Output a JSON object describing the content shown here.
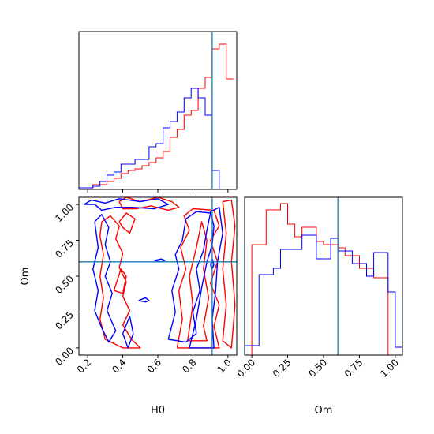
{
  "chart_data": {
    "type": "corner",
    "colors": {
      "run_a": "#ff0000",
      "run_b": "#0000ff",
      "truth": "#1f77b4"
    },
    "truth": {
      "H0": 0.91,
      "Om": 0.6
    },
    "params": [
      "H0",
      "Om"
    ],
    "axis_labels": {
      "H0": "H0",
      "Om": "Om"
    },
    "ticks": {
      "H0": {
        "values": [
          0.2,
          0.4,
          0.6,
          0.8,
          1.0
        ],
        "labels": [
          "0.2",
          "0.4",
          "0.6",
          "0.8",
          "1.0"
        ]
      },
      "Om": {
        "values": [
          0.0,
          0.25,
          0.5,
          0.75,
          1.0
        ],
        "labels": [
          "0.00",
          "0.25",
          "0.50",
          "0.75",
          "1.00"
        ]
      }
    },
    "ranges": {
      "H0": [
        0.15,
        1.05
      ],
      "Om": [
        -0.05,
        1.05
      ]
    },
    "grid": false,
    "hist_H0": {
      "bin_edges": [
        0.15,
        0.19,
        0.23,
        0.27,
        0.31,
        0.35,
        0.39,
        0.43,
        0.47,
        0.51,
        0.55,
        0.59,
        0.63,
        0.67,
        0.71,
        0.75,
        0.79,
        0.83,
        0.87,
        0.91,
        0.95,
        0.99,
        1.03
      ],
      "run_a": [
        0.01,
        0.01,
        0.03,
        0.03,
        0.05,
        0.07,
        0.1,
        0.12,
        0.13,
        0.15,
        0.17,
        0.2,
        0.24,
        0.33,
        0.38,
        0.47,
        0.5,
        0.64,
        0.71,
        0.89,
        0.92,
        0.7
      ],
      "run_b": [
        0.01,
        0.01,
        0.02,
        0.05,
        0.09,
        0.11,
        0.16,
        0.16,
        0.19,
        0.19,
        0.27,
        0.29,
        0.39,
        0.43,
        0.49,
        0.58,
        0.64,
        0.58,
        0.47,
        0.12,
        0.0,
        0.0
      ]
    },
    "hist_Om": {
      "bin_edges": [
        -0.05,
        0.0,
        0.05,
        0.1,
        0.15,
        0.2,
        0.25,
        0.3,
        0.35,
        0.4,
        0.45,
        0.5,
        0.55,
        0.6,
        0.65,
        0.7,
        0.75,
        0.8,
        0.85,
        0.9,
        0.95,
        1.0,
        1.05
      ],
      "run_a": [
        0.0,
        0.7,
        0.7,
        0.92,
        0.92,
        0.96,
        0.83,
        0.75,
        0.81,
        0.81,
        0.72,
        0.7,
        0.7,
        0.68,
        0.63,
        0.63,
        0.55,
        0.55,
        0.49,
        0.49,
        0.0,
        0.0
      ],
      "run_b": [
        0.06,
        0.06,
        0.51,
        0.51,
        0.55,
        0.67,
        0.67,
        0.67,
        0.76,
        0.76,
        0.61,
        0.61,
        0.74,
        0.66,
        0.66,
        0.58,
        0.58,
        0.5,
        0.65,
        0.65,
        0.4,
        0.05
      ]
    },
    "contours_2d": {
      "run_a": [
        [
          [
            0.38,
            1.02
          ],
          [
            0.42,
            1.05
          ],
          [
            0.5,
            1.02
          ],
          [
            0.6,
            1.05
          ],
          [
            0.68,
            1.02
          ],
          [
            0.72,
            0.98
          ],
          [
            0.66,
            0.96
          ],
          [
            0.56,
            0.99
          ],
          [
            0.48,
            0.97
          ],
          [
            0.4,
            0.97
          ],
          [
            0.38,
            1.02
          ]
        ],
        [
          [
            0.28,
            0.88
          ],
          [
            0.33,
            0.92
          ],
          [
            0.38,
            0.85
          ],
          [
            0.36,
            0.76
          ],
          [
            0.4,
            0.66
          ],
          [
            0.38,
            0.56
          ],
          [
            0.42,
            0.46
          ],
          [
            0.4,
            0.36
          ],
          [
            0.44,
            0.26
          ],
          [
            0.4,
            0.16
          ],
          [
            0.45,
            0.06
          ],
          [
            0.5,
            0.0
          ],
          [
            0.4,
            0.0
          ],
          [
            0.3,
            0.06
          ],
          [
            0.27,
            0.2
          ],
          [
            0.29,
            0.35
          ],
          [
            0.27,
            0.5
          ],
          [
            0.29,
            0.65
          ],
          [
            0.27,
            0.78
          ],
          [
            0.28,
            0.88
          ]
        ],
        [
          [
            0.38,
            0.88
          ],
          [
            0.42,
            0.94
          ],
          [
            0.47,
            0.9
          ],
          [
            0.44,
            0.8
          ],
          [
            0.4,
            0.84
          ],
          [
            0.38,
            0.88
          ]
        ],
        [
          [
            0.35,
            0.4
          ],
          [
            0.39,
            0.55
          ],
          [
            0.42,
            0.5
          ],
          [
            0.4,
            0.38
          ],
          [
            0.35,
            0.4
          ]
        ],
        [
          [
            0.71,
            0.0
          ],
          [
            0.74,
            0.2
          ],
          [
            0.72,
            0.4
          ],
          [
            0.76,
            0.55
          ],
          [
            0.73,
            0.7
          ],
          [
            0.78,
            0.82
          ],
          [
            0.75,
            0.92
          ],
          [
            0.8,
            0.97
          ],
          [
            0.92,
            0.96
          ],
          [
            0.95,
            0.85
          ],
          [
            0.9,
            0.75
          ],
          [
            0.94,
            0.6
          ],
          [
            0.9,
            0.45
          ],
          [
            0.95,
            0.3
          ],
          [
            0.92,
            0.15
          ],
          [
            0.95,
            0.0
          ],
          [
            0.71,
            0.0
          ]
        ],
        [
          [
            0.77,
            0.05
          ],
          [
            0.8,
            0.3
          ],
          [
            0.78,
            0.5
          ],
          [
            0.82,
            0.7
          ],
          [
            0.85,
            0.88
          ],
          [
            0.88,
            0.75
          ],
          [
            0.86,
            0.55
          ],
          [
            0.89,
            0.35
          ],
          [
            0.86,
            0.15
          ],
          [
            0.88,
            0.05
          ],
          [
            0.77,
            0.05
          ]
        ],
        [
          [
            0.97,
            1.02
          ],
          [
            0.99,
            0.8
          ],
          [
            0.97,
            0.55
          ],
          [
            0.99,
            0.3
          ],
          [
            0.97,
            0.05
          ],
          [
            1.02,
            0.0
          ],
          [
            1.04,
            0.3
          ],
          [
            1.02,
            0.6
          ],
          [
            1.04,
            0.85
          ],
          [
            1.02,
            1.03
          ],
          [
            0.97,
            1.02
          ]
        ]
      ],
      "run_b": [
        [
          [
            0.18,
            1.0
          ],
          [
            0.22,
            1.03
          ],
          [
            0.3,
            1.01
          ],
          [
            0.38,
            1.04
          ],
          [
            0.5,
            1.02
          ],
          [
            0.6,
            1.04
          ],
          [
            0.66,
            1.0
          ],
          [
            0.58,
            0.97
          ],
          [
            0.45,
            0.98
          ],
          [
            0.36,
            0.98
          ],
          [
            0.28,
            0.96
          ],
          [
            0.24,
            1.0
          ],
          [
            0.18,
            1.0
          ]
        ],
        [
          [
            0.24,
            0.88
          ],
          [
            0.28,
            0.93
          ],
          [
            0.32,
            0.84
          ],
          [
            0.3,
            0.72
          ],
          [
            0.33,
            0.6
          ],
          [
            0.3,
            0.5
          ],
          [
            0.34,
            0.38
          ],
          [
            0.31,
            0.26
          ],
          [
            0.36,
            0.12
          ],
          [
            0.32,
            0.04
          ],
          [
            0.28,
            0.14
          ],
          [
            0.24,
            0.26
          ],
          [
            0.26,
            0.4
          ],
          [
            0.23,
            0.55
          ],
          [
            0.26,
            0.7
          ],
          [
            0.24,
            0.88
          ]
        ],
        [
          [
            0.4,
            0.1
          ],
          [
            0.44,
            0.22
          ],
          [
            0.46,
            0.1
          ],
          [
            0.43,
            0.0
          ],
          [
            0.4,
            0.1
          ]
        ],
        [
          [
            0.66,
            0.06
          ],
          [
            0.7,
            0.25
          ],
          [
            0.68,
            0.4
          ],
          [
            0.72,
            0.55
          ],
          [
            0.7,
            0.65
          ],
          [
            0.74,
            0.75
          ],
          [
            0.76,
            0.9
          ],
          [
            0.82,
            0.95
          ],
          [
            0.9,
            0.94
          ],
          [
            0.88,
            0.82
          ],
          [
            0.86,
            0.68
          ],
          [
            0.82,
            0.55
          ],
          [
            0.84,
            0.4
          ],
          [
            0.8,
            0.25
          ],
          [
            0.82,
            0.1
          ],
          [
            0.76,
            0.04
          ],
          [
            0.66,
            0.06
          ]
        ],
        [
          [
            0.78,
            0.0
          ],
          [
            0.82,
            0.2
          ],
          [
            0.85,
            0.42
          ],
          [
            0.88,
            0.6
          ],
          [
            0.91,
            0.72
          ],
          [
            0.92,
            0.85
          ],
          [
            0.9,
            0.95
          ],
          [
            0.95,
            0.98
          ],
          [
            0.97,
            0.8
          ],
          [
            0.94,
            0.6
          ],
          [
            0.93,
            0.4
          ],
          [
            0.91,
            0.2
          ],
          [
            0.92,
            0.0
          ],
          [
            0.78,
            0.0
          ]
        ],
        [
          [
            0.9,
            0.58
          ],
          [
            0.91,
            0.62
          ],
          [
            0.92,
            0.58
          ],
          [
            0.91,
            0.55
          ],
          [
            0.9,
            0.58
          ]
        ],
        [
          [
            0.58,
            0.61
          ],
          [
            0.62,
            0.62
          ],
          [
            0.64,
            0.61
          ],
          [
            0.62,
            0.6
          ],
          [
            0.58,
            0.61
          ]
        ],
        [
          [
            0.49,
            0.33
          ],
          [
            0.53,
            0.35
          ],
          [
            0.55,
            0.33
          ],
          [
            0.53,
            0.32
          ],
          [
            0.49,
            0.33
          ]
        ]
      ]
    }
  }
}
